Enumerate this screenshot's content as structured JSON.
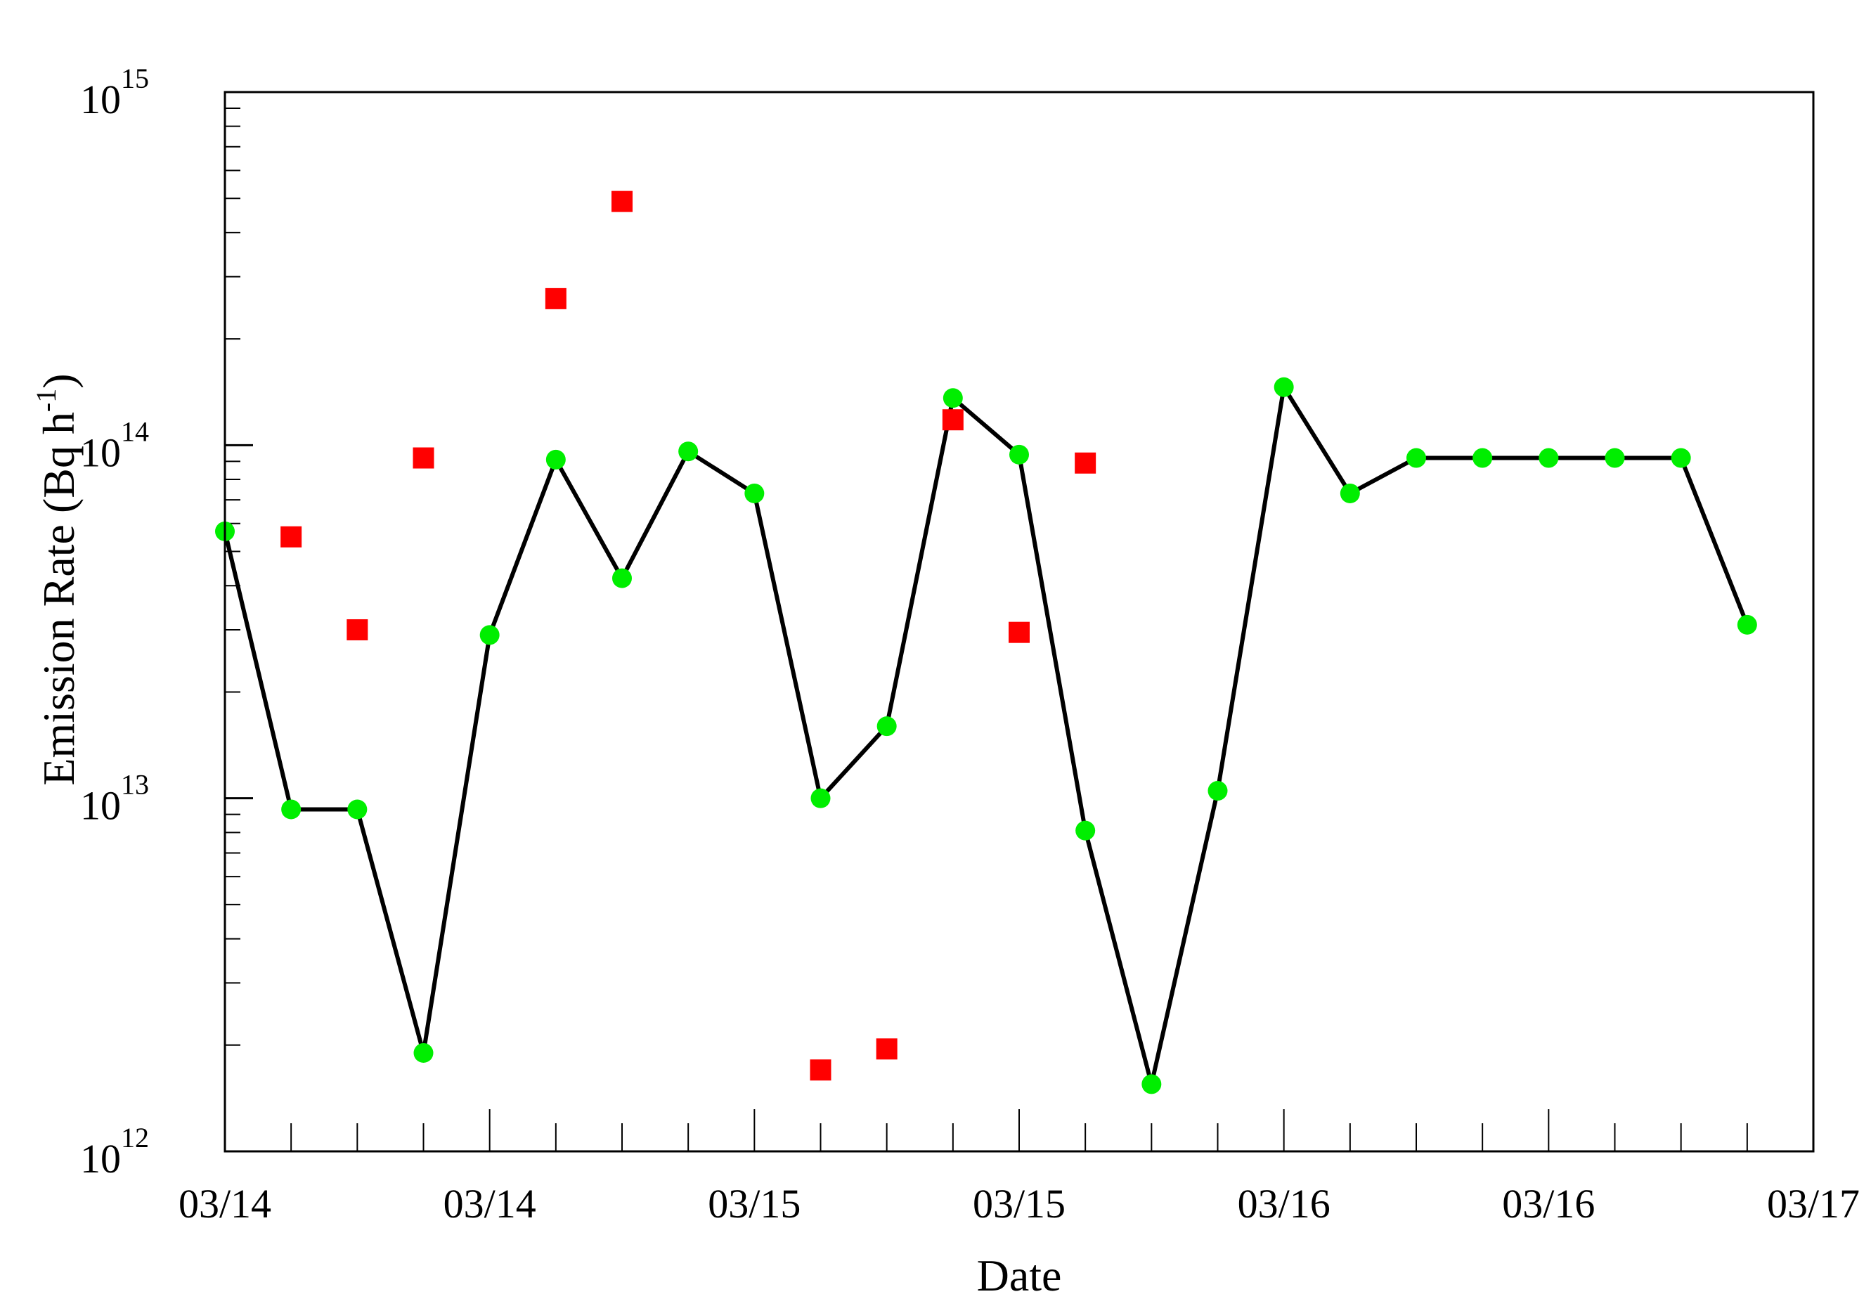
{
  "chart_data": {
    "type": "scatter",
    "xlabel": "Date",
    "ylabel": "Emission Rate (Bq h",
    "ylabel_superscript": "-1",
    "ylabel_suffix": ")",
    "x_tick_labels": [
      "03/14",
      "03/14",
      "03/15",
      "03/15",
      "03/16",
      "03/16",
      "03/17"
    ],
    "y_scale": "log",
    "ylim": [
      1000000000000.0,
      1000000000000000.0
    ],
    "y_tick_labels": [
      {
        "base": "10",
        "exp": "12"
      },
      {
        "base": "10",
        "exp": "13"
      },
      {
        "base": "10",
        "exp": "14"
      },
      {
        "base": "10",
        "exp": "15"
      }
    ],
    "xlim": [
      0,
      24
    ],
    "x_step": "3 h",
    "grid": false,
    "series": [
      {
        "marker": "circle",
        "line": true,
        "color": "#00ee00",
        "line_color": "#000000",
        "points": [
          [
            0,
            57000000000000.0
          ],
          [
            1,
            9300000000000.0
          ],
          [
            2,
            9300000000000.0
          ],
          [
            3,
            1900000000000.0
          ],
          [
            4,
            29000000000000.0
          ],
          [
            5,
            91000000000000.0
          ],
          [
            6,
            42000000000000.0
          ],
          [
            7,
            96000000000000.0
          ],
          [
            8,
            73000000000000.0
          ],
          [
            9,
            10000000000000.0
          ],
          [
            10,
            16000000000000.0
          ],
          [
            11,
            136000000000000.0
          ],
          [
            12,
            94000000000000.0
          ],
          [
            13,
            8100000000000.0
          ],
          [
            14,
            1550000000000.0
          ],
          [
            15,
            10500000000000.0
          ],
          [
            16,
            146000000000000.0
          ],
          [
            17,
            73000000000000.0
          ],
          [
            18,
            92000000000000.0
          ],
          [
            19,
            92000000000000.0
          ],
          [
            20,
            92000000000000.0
          ],
          [
            21,
            92000000000000.0
          ],
          [
            22,
            92000000000000.0
          ],
          [
            23,
            31000000000000.0
          ]
        ]
      },
      {
        "marker": "square",
        "line": false,
        "color": "#ff0000",
        "points": [
          [
            1,
            55000000000000.0
          ],
          [
            2,
            30000000000000.0
          ],
          [
            3,
            92000000000000.0
          ],
          [
            5,
            260000000000000.0
          ],
          [
            6,
            490000000000000.0
          ],
          [
            9,
            1700000000000.0
          ],
          [
            10,
            1950000000000.0
          ],
          [
            11,
            118000000000000.0
          ],
          [
            12,
            29500000000000.0
          ],
          [
            13,
            89000000000000.0
          ]
        ]
      }
    ]
  }
}
